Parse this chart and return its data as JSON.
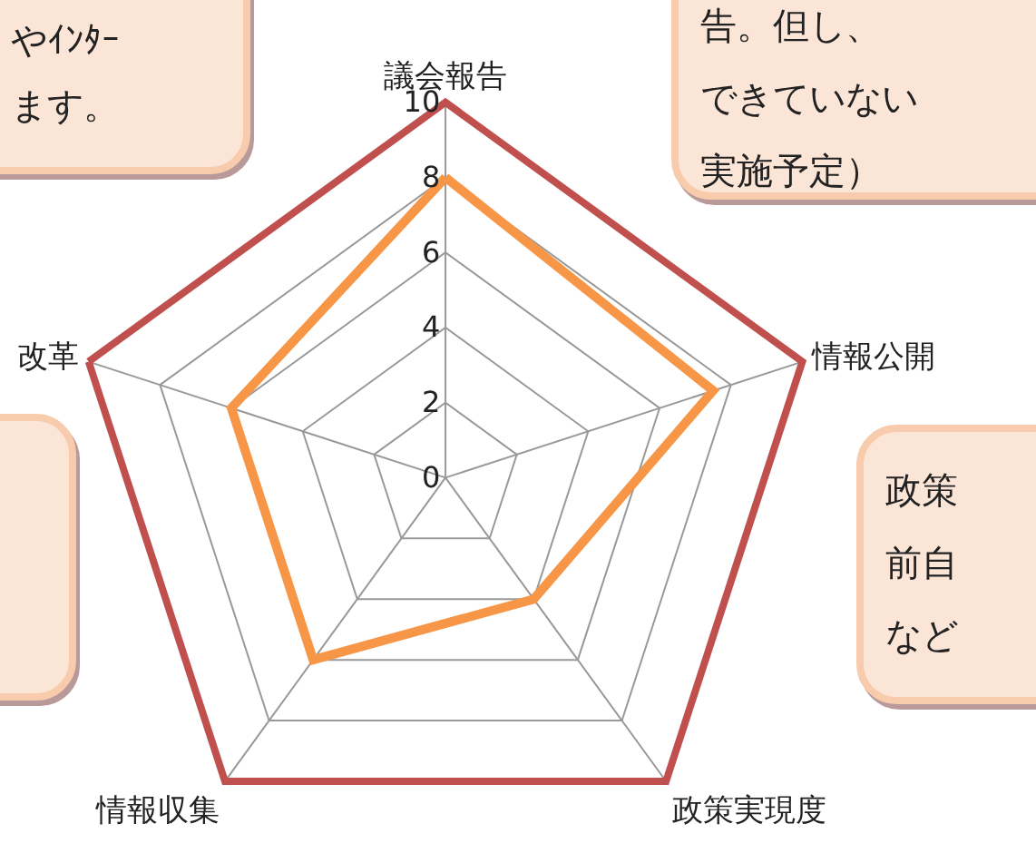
{
  "chart_data": {
    "type": "radar",
    "categories": [
      "議会報告",
      "情報公開",
      "政策実現度",
      "情報収集",
      "改革"
    ],
    "series": [
      {
        "color": "#f79646",
        "values": [
          8,
          7.5,
          4,
          6,
          6
        ]
      }
    ],
    "ylim": [
      0,
      10
    ],
    "yticks": [
      0,
      2,
      4,
      6,
      8,
      10
    ],
    "grid": true,
    "annotations": [
      "やｲﾝﾀｰ",
      "ます。",
      "告。但し、",
      "できていない",
      "実施予定）",
      "政策",
      "前自",
      "など"
    ]
  }
}
